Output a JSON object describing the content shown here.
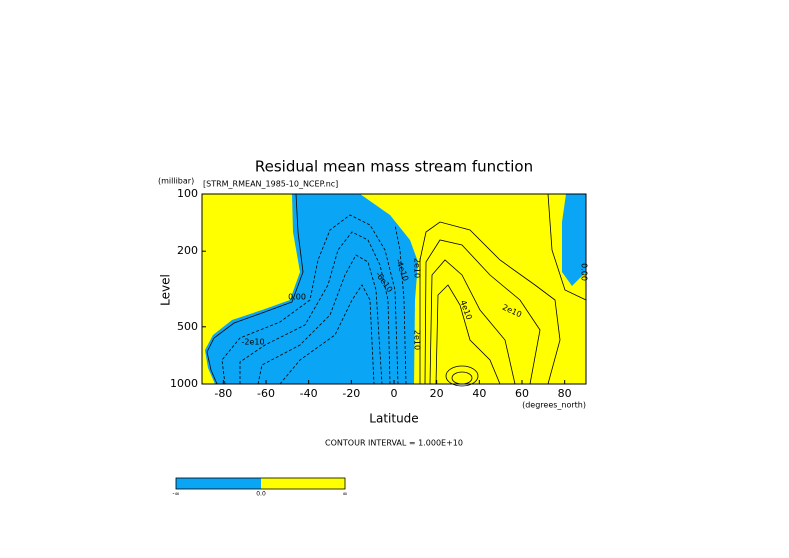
{
  "chart_data": {
    "type": "contour",
    "title": "Residual mean mass stream function",
    "subtitle": "[STRM_RMEAN_1985-10_NCEP.nc]",
    "y_unit": "(millibar)",
    "ylabel": "Level",
    "xlabel": "Latitude",
    "x_unit": "(degrees_north)",
    "note": "CONTOUR INTERVAL = 1.000E+10",
    "xlim": [
      -90,
      90
    ],
    "xticks": [
      -80,
      -60,
      -40,
      -20,
      0,
      20,
      40,
      60,
      80
    ],
    "ylim": [
      1000,
      100
    ],
    "yticks": [
      100,
      200,
      500,
      1000
    ],
    "ylog": true,
    "fill_colors": [
      "#0aa5f5",
      "#ffff00"
    ],
    "contour_labels": [
      "0.00",
      "-2e10",
      "-6e10",
      "-4e10",
      "2e10",
      "4e10",
      "2e10",
      "0.00",
      "2e10"
    ],
    "colorbar_labels": [
      "-∞",
      "0.0",
      "∞"
    ]
  }
}
